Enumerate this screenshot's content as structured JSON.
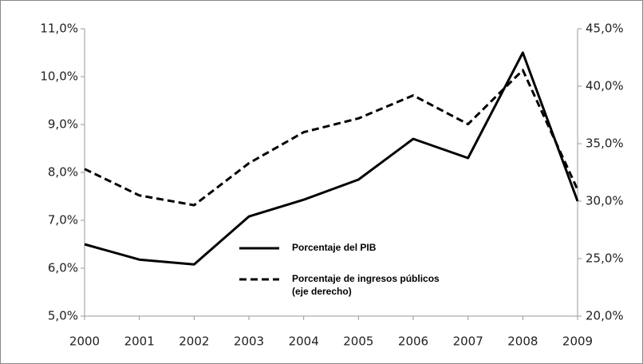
{
  "chart_data": {
    "type": "line",
    "categories": [
      "2000",
      "2001",
      "2002",
      "2003",
      "2004",
      "2005",
      "2006",
      "2007",
      "2008",
      "2009"
    ],
    "series": [
      {
        "name": "Porcentaje del PIB",
        "color": "#000000",
        "dash": "solid",
        "values": [
          6.5,
          6.18,
          6.08,
          7.08,
          7.43,
          7.85,
          8.7,
          8.3,
          10.5,
          7.4
        ]
      },
      {
        "name": "Porcentaje de ingresos públicos (eje derecho)",
        "color": "#000000",
        "dash": "dashed",
        "axis": "y2",
        "values": [
          32.8,
          30.5,
          29.65,
          33.3,
          36.0,
          37.2,
          39.2,
          36.7,
          41.4,
          31.0
        ]
      }
    ],
    "ylim": [
      5,
      11
    ],
    "yticks": [
      {
        "value": 5,
        "label": "5,0%"
      },
      {
        "value": 6,
        "label": "6,0%"
      },
      {
        "value": 7,
        "label": "7,0%"
      },
      {
        "value": 8,
        "label": "8,0%"
      },
      {
        "value": 9,
        "label": "9,0%"
      },
      {
        "value": 10,
        "label": "10,0%"
      },
      {
        "value": 11,
        "label": "11,0%"
      }
    ],
    "y2lim": [
      20,
      45
    ],
    "y2ticks": [
      {
        "value": 20,
        "label": "20,0%"
      },
      {
        "value": 25,
        "label": "25,0%"
      },
      {
        "value": 30,
        "label": "30,0%"
      },
      {
        "value": 35,
        "label": "35,0%"
      },
      {
        "value": 40,
        "label": "40,0%"
      },
      {
        "value": 45,
        "label": "45,0%"
      }
    ],
    "grid": false
  }
}
